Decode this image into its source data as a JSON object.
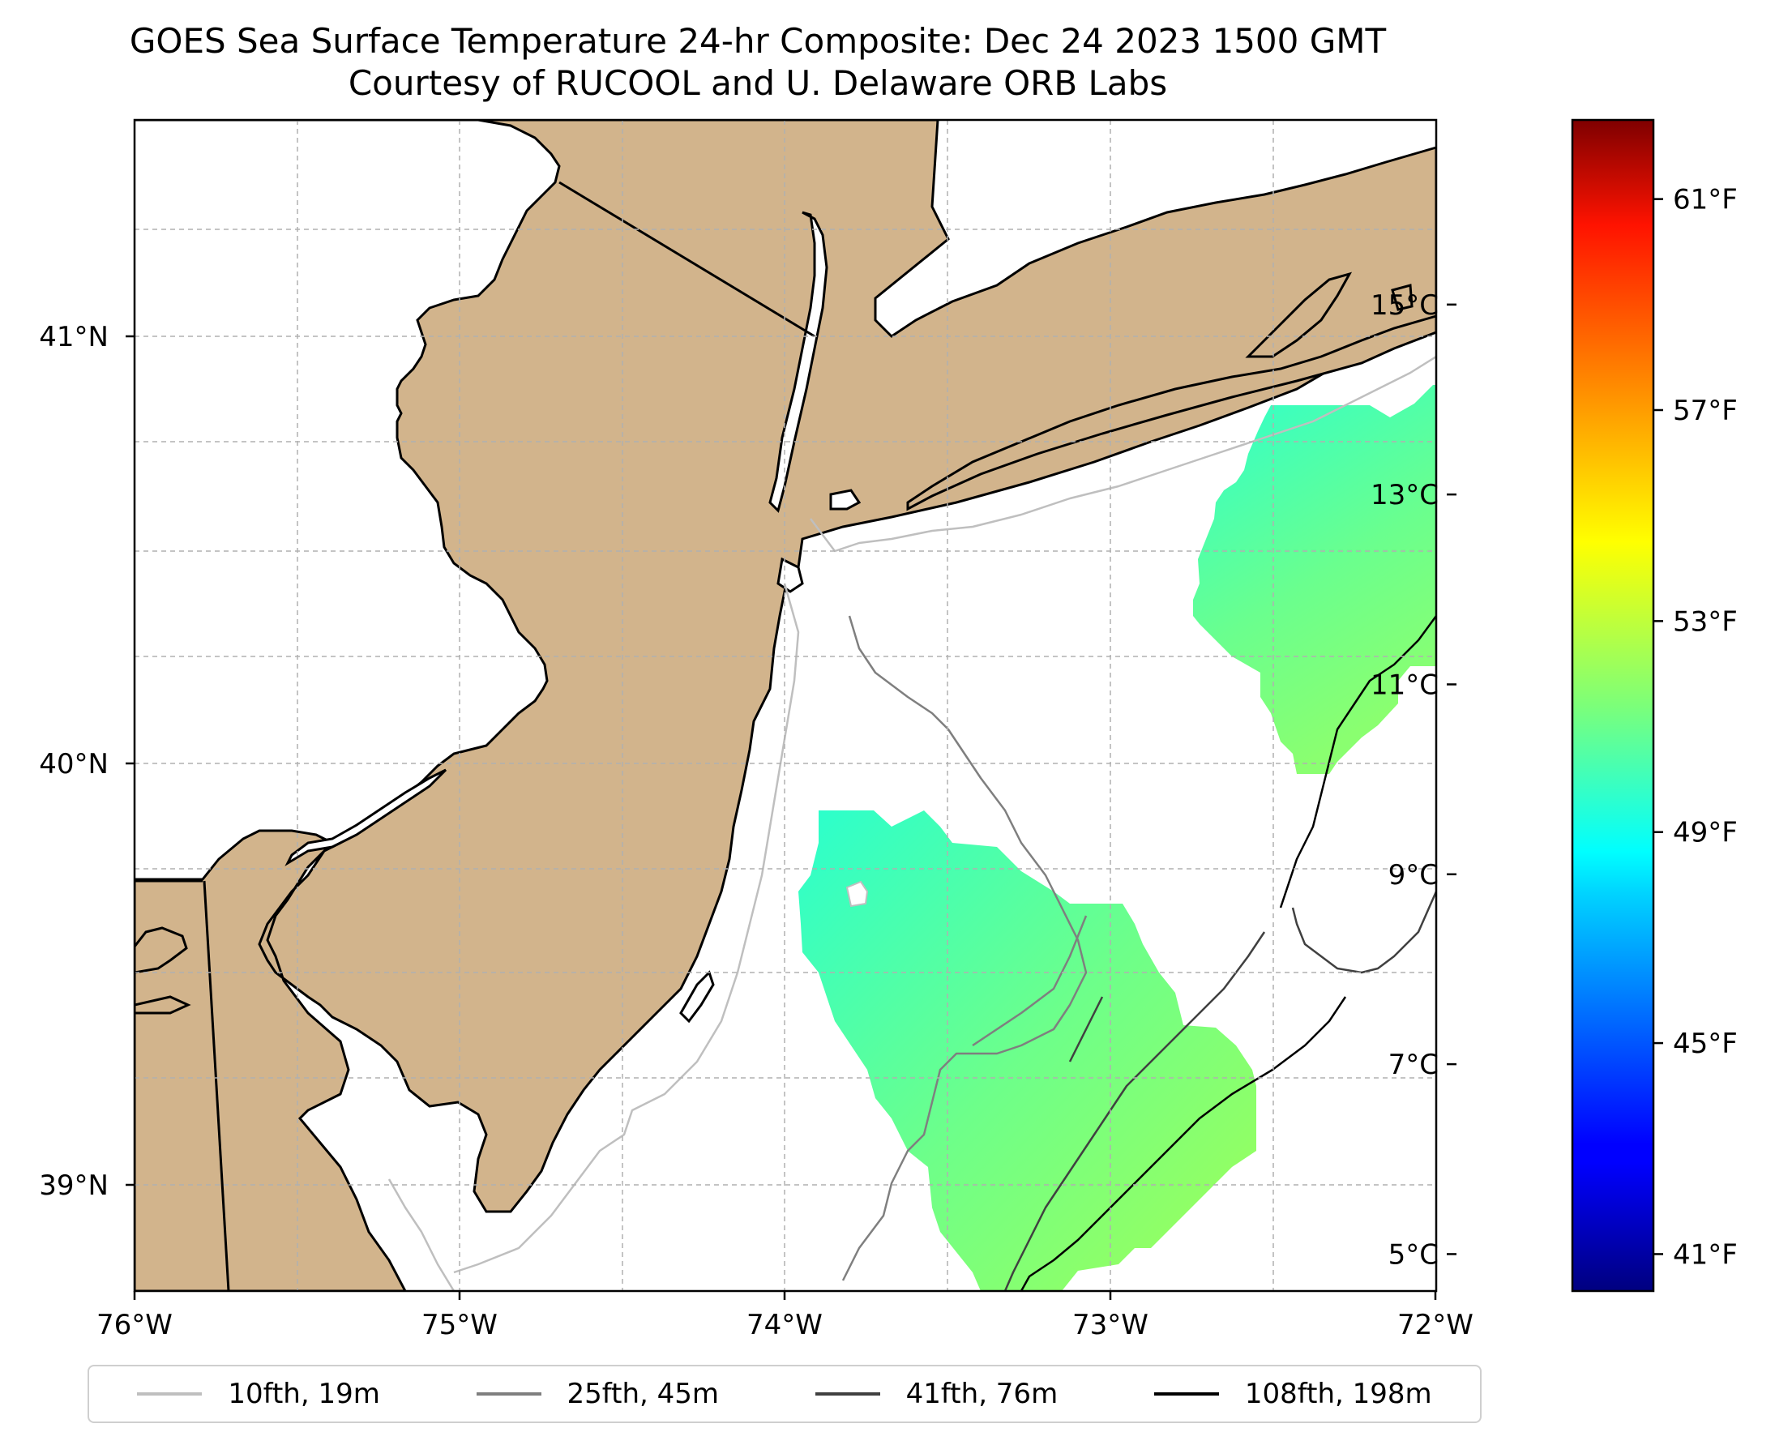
{
  "title": {
    "line1": "GOES Sea Surface Temperature 24-hr Composite: Dec 24 2023 1500 GMT",
    "line2": "Courtesy of RUCOOL and U. Delaware ORB Labs"
  },
  "map": {
    "lon_range": [
      -76,
      -72
    ],
    "lat_range": [
      38.75,
      41.55
    ],
    "lon_ticks": [
      "76°W",
      "75°W",
      "74°W",
      "73°W",
      "72°W"
    ],
    "lat_ticks": [
      "39°N",
      "40°N",
      "41°N"
    ],
    "land_color": "#d2b48c",
    "ocean_color": "#ffffff",
    "grid": "dashed"
  },
  "colorbar": {
    "colormap": "jet",
    "celsius_ticks": [
      "5°C",
      "7°C",
      "9°C",
      "11°C",
      "13°C",
      "15°C"
    ],
    "fahrenheit_ticks": [
      "41°F",
      "45°F",
      "49°F",
      "53°F",
      "57°F",
      "61°F"
    ],
    "celsius_values": [
      5,
      7,
      9,
      11,
      13,
      15
    ],
    "fahrenheit_values": [
      41,
      45,
      49,
      53,
      57,
      61
    ],
    "range_f": [
      40.3,
      62.5
    ]
  },
  "legend": {
    "items": [
      {
        "label": "10fth, 19m",
        "color": "#bfbfbf"
      },
      {
        "label": "25fth, 45m",
        "color": "#7f7f7f"
      },
      {
        "label": "41fth, 76m",
        "color": "#404040"
      },
      {
        "label": "108fth, 198m",
        "color": "#000000"
      }
    ]
  }
}
